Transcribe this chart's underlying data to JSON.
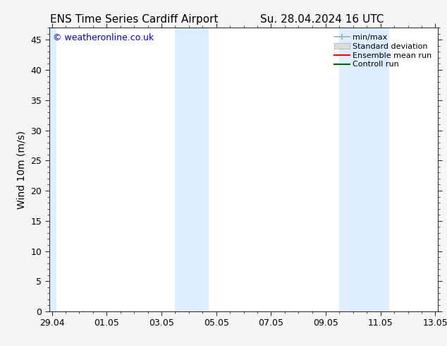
{
  "title_left": "ENS Time Series Cardiff Airport",
  "title_right": "Su. 28.04.2024 16 UTC",
  "ylabel": "Wind 10m (m/s)",
  "watermark": "© weatheronline.co.uk",
  "watermark_color": "#0000cc",
  "xtick_labels": [
    "29.04",
    "01.05",
    "03.05",
    "05.05",
    "07.05",
    "09.05",
    "11.05",
    "13.05"
  ],
  "xtick_positions": [
    0,
    2,
    4,
    6,
    8,
    10,
    12,
    14
  ],
  "xlim": [
    -0.1,
    14.1
  ],
  "ylim": [
    0,
    47
  ],
  "ytick_values": [
    0,
    5,
    10,
    15,
    20,
    25,
    30,
    35,
    40,
    45
  ],
  "shaded_bands": [
    {
      "x_start": -0.1,
      "x_end": 0.15
    },
    {
      "x_start": 4.5,
      "x_end": 5.7
    },
    {
      "x_start": 10.5,
      "x_end": 12.3
    }
  ],
  "shaded_color": "#ddeeff",
  "background_color": "#f5f5f5",
  "plot_bg_color": "#ffffff",
  "legend_entries": [
    {
      "label": "min/max",
      "color": "#aaaaaa"
    },
    {
      "label": "Standard deviation",
      "color": "#cccccc"
    },
    {
      "label": "Ensemble mean run",
      "color": "#ff0000"
    },
    {
      "label": "Controll run",
      "color": "#006600"
    }
  ],
  "title_fontsize": 11,
  "axis_fontsize": 10,
  "tick_fontsize": 9,
  "watermark_fontsize": 9,
  "legend_fontsize": 8
}
